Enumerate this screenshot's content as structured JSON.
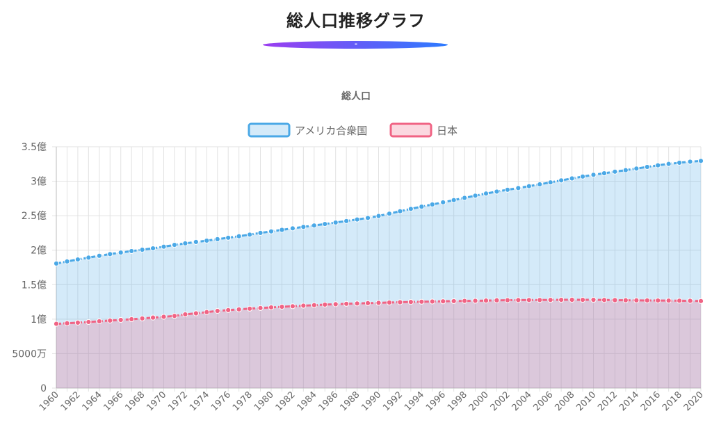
{
  "page": {
    "title": "総人口推移グラフ",
    "accent_mark": "-",
    "accent_gradient": [
      "#9b3df0",
      "#2c7bff"
    ]
  },
  "chart_data": {
    "type": "area",
    "title": "総人口",
    "xlabel": "",
    "ylabel": "",
    "x": [
      1960,
      1961,
      1962,
      1963,
      1964,
      1965,
      1966,
      1967,
      1968,
      1969,
      1970,
      1971,
      1972,
      1973,
      1974,
      1975,
      1976,
      1977,
      1978,
      1979,
      1980,
      1981,
      1982,
      1983,
      1984,
      1985,
      1986,
      1987,
      1988,
      1989,
      1990,
      1991,
      1992,
      1993,
      1994,
      1995,
      1996,
      1997,
      1998,
      1999,
      2000,
      2001,
      2002,
      2003,
      2004,
      2005,
      2006,
      2007,
      2008,
      2009,
      2010,
      2011,
      2012,
      2013,
      2014,
      2015,
      2016,
      2017,
      2018,
      2019,
      2020
    ],
    "x_tick_labels": [
      "1960",
      "1962",
      "1964",
      "1966",
      "1968",
      "1970",
      "1972",
      "1974",
      "1976",
      "1978",
      "1980",
      "1982",
      "1984",
      "1986",
      "1988",
      "1990",
      "1992",
      "1994",
      "1996",
      "1998",
      "2000",
      "2002",
      "2004",
      "2006",
      "2008",
      "2010",
      "2012",
      "2014",
      "2016",
      "2018",
      "2020"
    ],
    "y_tick_values": [
      0,
      50000000,
      100000000,
      150000000,
      200000000,
      250000000,
      300000000,
      350000000
    ],
    "y_tick_labels": [
      "0",
      "5000万",
      "1億",
      "1.5億",
      "2億",
      "2.5億",
      "3億",
      "3.5億"
    ],
    "ylim": [
      0,
      350000000
    ],
    "grid": true,
    "legend_position": "top",
    "series": [
      {
        "name": "アメリカ合衆国",
        "color": "#4aa8e6",
        "fill": "rgba(84,170,230,0.25)",
        "values": [
          180671000,
          183691000,
          186538000,
          189242000,
          191889000,
          194303000,
          196560000,
          198712000,
          200706000,
          202677000,
          205052000,
          207661000,
          209896000,
          211909000,
          213854000,
          215973000,
          218035000,
          220239000,
          222585000,
          225055000,
          227225000,
          229466000,
          231664000,
          233792000,
          235825000,
          237924000,
          240133000,
          242289000,
          244499000,
          246819000,
          249623000,
          252981000,
          256514000,
          259919000,
          263126000,
          266278000,
          269394000,
          272657000,
          275854000,
          279040000,
          282162000,
          284969000,
          287625000,
          290108000,
          292805000,
          295517000,
          298380000,
          301231000,
          304094000,
          306772000,
          309327000,
          311583000,
          313878000,
          316060000,
          318386000,
          320743000,
          323071000,
          325147000,
          326838000,
          328330000,
          329484000
        ]
      },
      {
        "name": "日本",
        "color": "#f06384",
        "fill": "rgba(240,99,132,0.25)",
        "values": [
          93216000,
          94055000,
          94933000,
          95900000,
          96903000,
          97952000,
          98851000,
          99879000,
          101011000,
          102219000,
          103403000,
          104665000,
          106960000,
          108429000,
          110162000,
          111940000,
          113094000,
          114165000,
          115190000,
          116155000,
          117060000,
          117902000,
          118728000,
          119536000,
          120305000,
          121049000,
          121660000,
          122239000,
          122745000,
          123205000,
          123611000,
          124101000,
          124567000,
          124938000,
          125265000,
          125570000,
          125859000,
          126157000,
          126472000,
          126667000,
          126926000,
          127316000,
          127486000,
          127694000,
          127787000,
          127768000,
          127901000,
          128033000,
          128084000,
          128032000,
          128057000,
          127834000,
          127593000,
          127414000,
          127237000,
          127095000,
          127042000,
          126919000,
          126749000,
          126555000,
          126261000
        ]
      }
    ]
  }
}
